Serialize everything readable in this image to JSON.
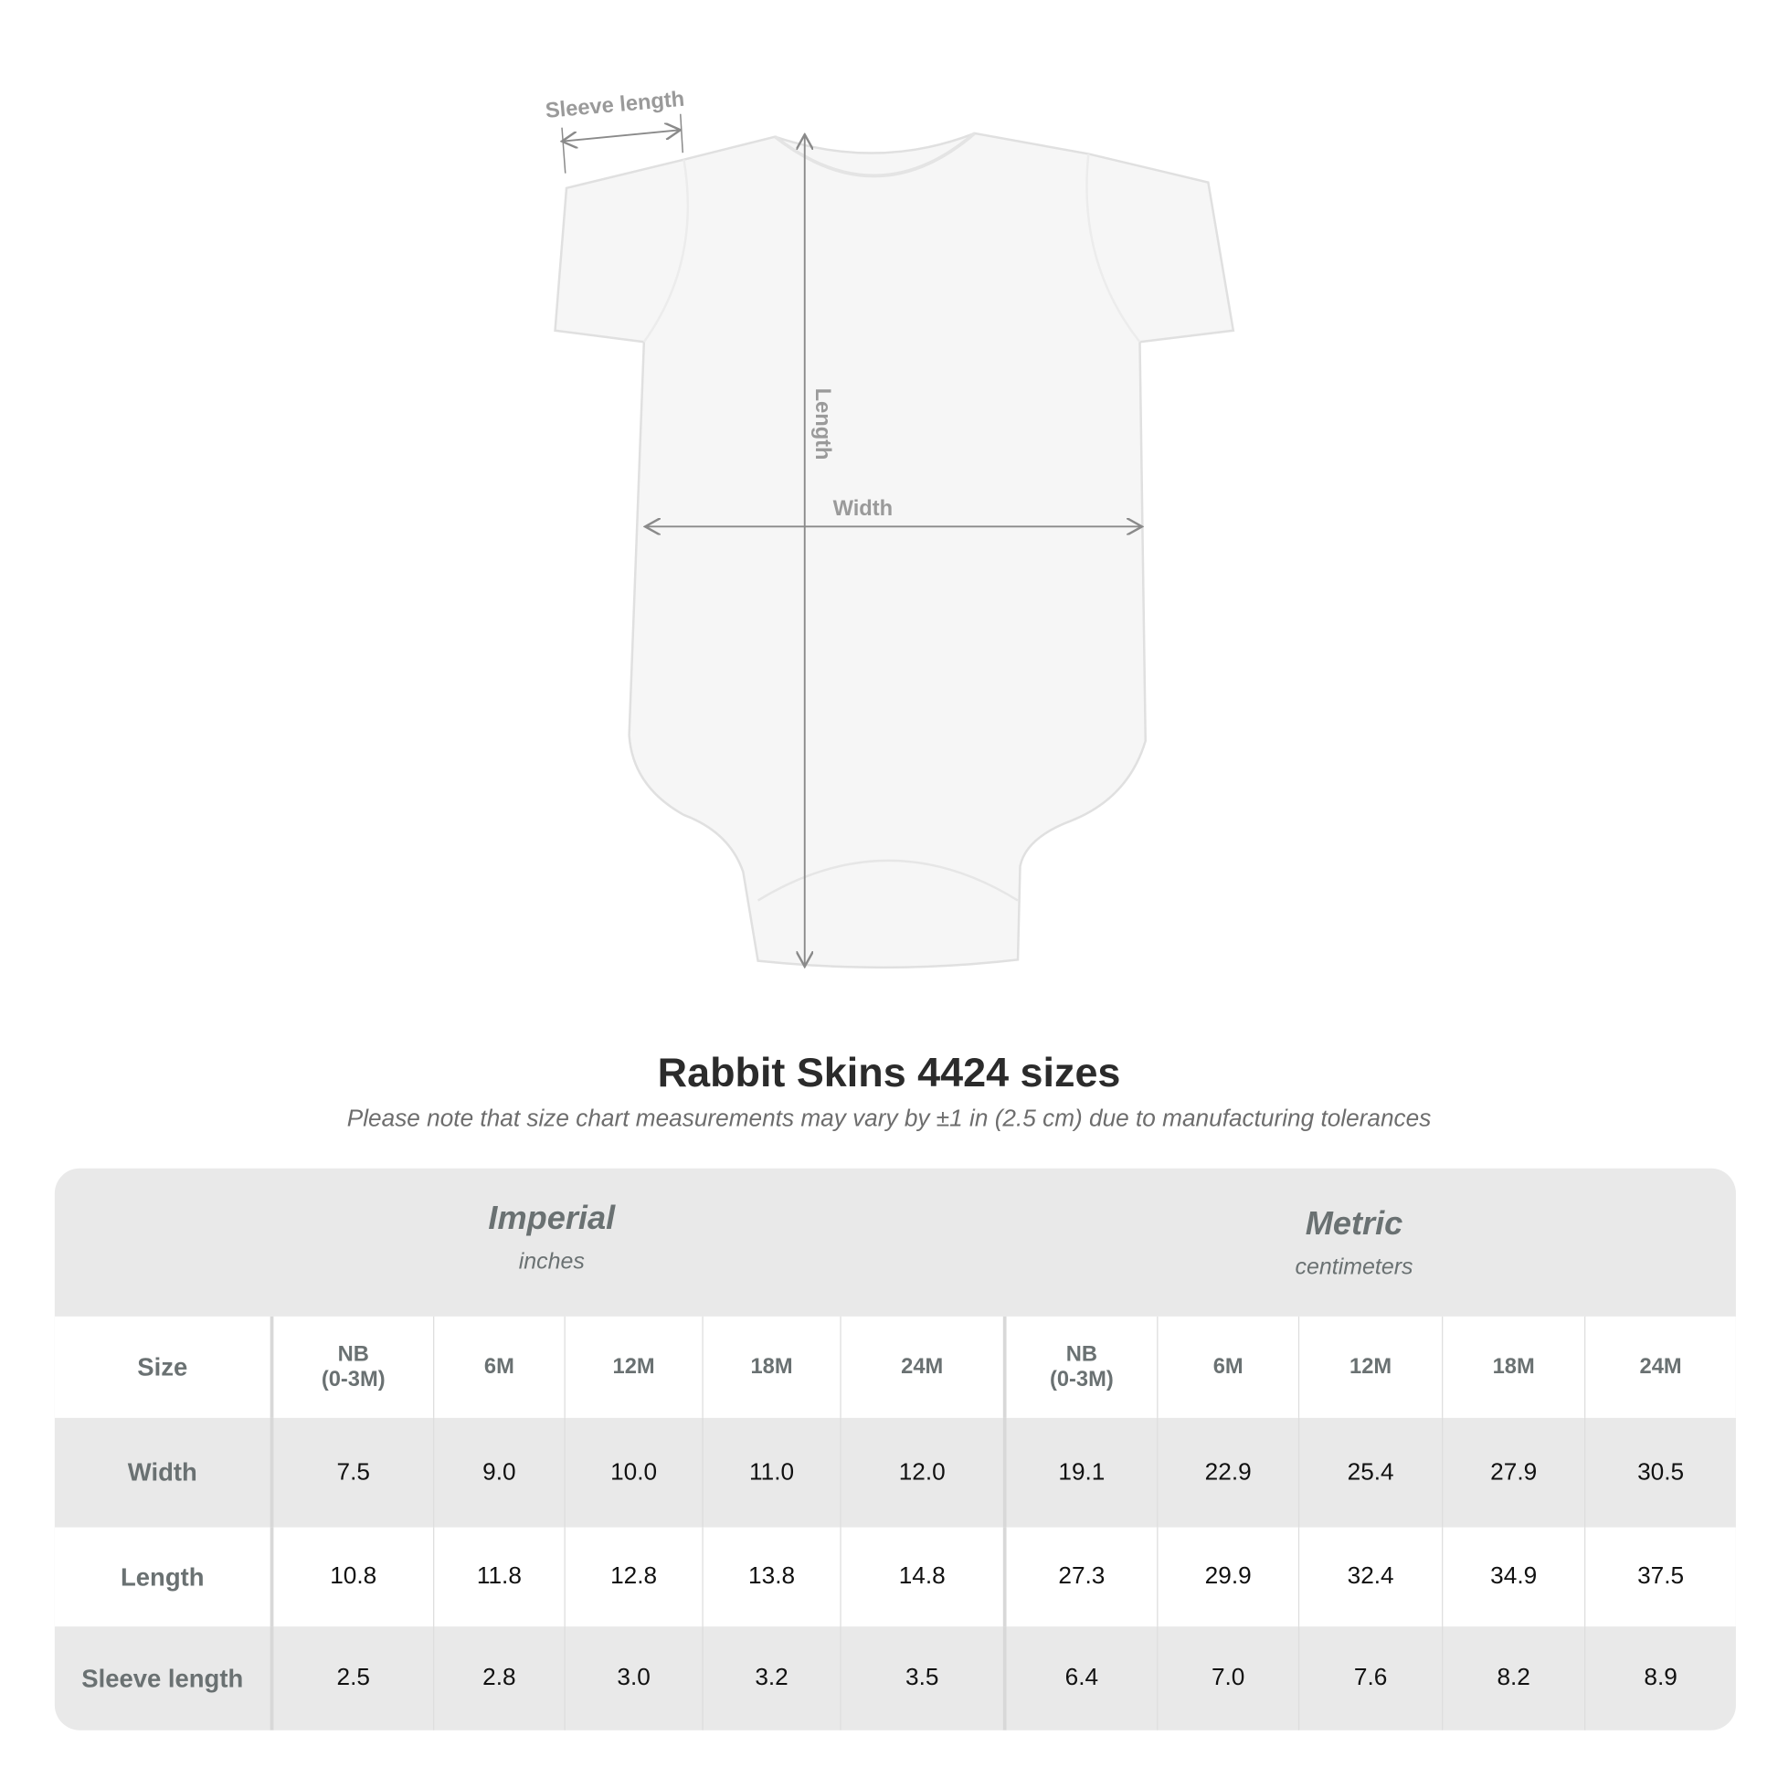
{
  "diagram": {
    "sleeve_label": "Sleeve length",
    "length_label": "Length",
    "width_label": "Width"
  },
  "title": "Rabbit Skins 4424 sizes",
  "subtitle": "Please note that size chart measurements may vary by ±1 in (2.5 cm) due to manufacturing tolerances",
  "table": {
    "imperial": {
      "name": "Imperial",
      "unit": "inches"
    },
    "metric": {
      "name": "Metric",
      "unit": "centimeters"
    },
    "size_label": "Size",
    "sizes": [
      "NB\n(0-3M)",
      "6M",
      "12M",
      "18M",
      "24M"
    ],
    "rows": [
      {
        "label": "Width",
        "imperial": [
          "7.5",
          "9.0",
          "10.0",
          "11.0",
          "12.0"
        ],
        "metric": [
          "19.1",
          "22.9",
          "25.4",
          "27.9",
          "30.5"
        ]
      },
      {
        "label": "Length",
        "imperial": [
          "10.8",
          "11.8",
          "12.8",
          "13.8",
          "14.8"
        ],
        "metric": [
          "27.3",
          "29.9",
          "32.4",
          "34.9",
          "37.5"
        ]
      },
      {
        "label": "Sleeve length",
        "imperial": [
          "2.5",
          "2.8",
          "3.0",
          "3.2",
          "3.5"
        ],
        "metric": [
          "6.4",
          "7.0",
          "7.6",
          "8.2",
          "8.9"
        ]
      }
    ]
  }
}
